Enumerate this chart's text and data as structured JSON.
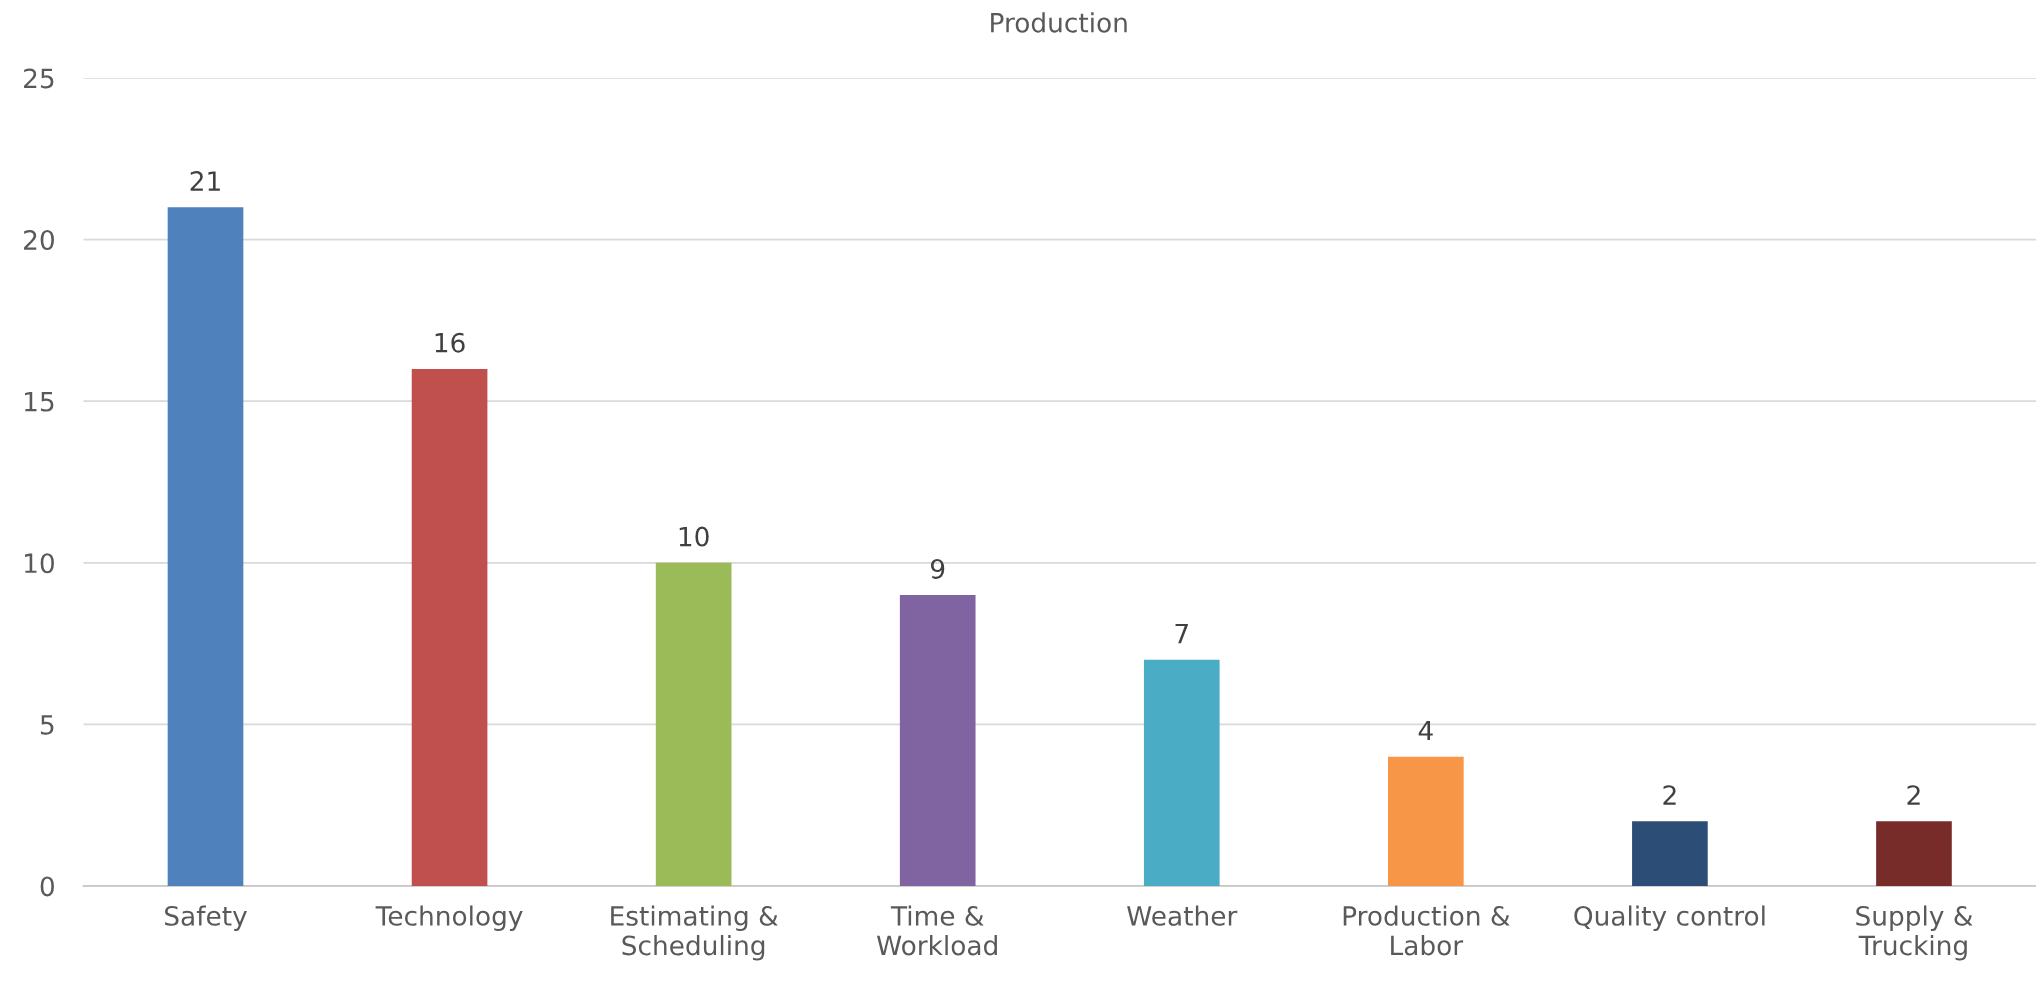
{
  "chart_data": {
    "type": "bar",
    "title": "Production",
    "categories": [
      "Safety",
      "Technology",
      "Estimating & Scheduling",
      "Time & Workload",
      "Weather",
      "Production & Labor",
      "Quality control",
      "Supply & Trucking"
    ],
    "values": [
      21,
      16,
      10,
      9,
      7,
      4,
      2,
      2
    ],
    "colors": [
      "#4f81bd",
      "#c0504d",
      "#9bbb59",
      "#8064a2",
      "#4bacc6",
      "#f79646",
      "#2c4d75",
      "#772c2a"
    ],
    "ylim": [
      0,
      25
    ],
    "yticks": [
      0,
      5,
      10,
      15,
      20,
      25
    ],
    "grid": "y",
    "data_labels": true,
    "legend": false
  }
}
